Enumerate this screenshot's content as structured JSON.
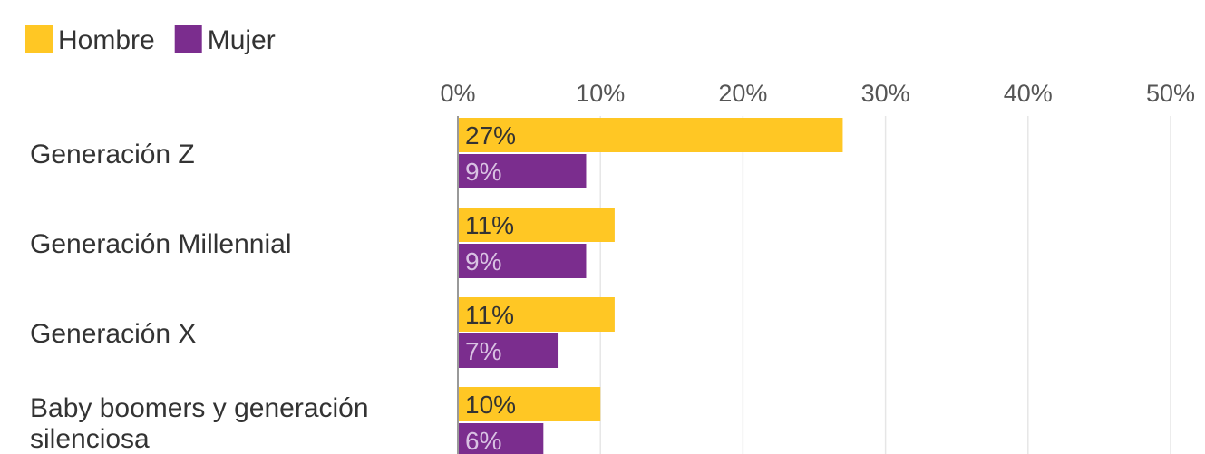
{
  "chart_data": {
    "type": "bar",
    "orientation": "horizontal",
    "title": "",
    "xlabel": "",
    "ylabel": "",
    "xlim": [
      0,
      50
    ],
    "ticks": [
      0,
      10,
      20,
      30,
      40,
      50
    ],
    "tick_labels": [
      "0%",
      "10%",
      "20%",
      "30%",
      "40%",
      "50%"
    ],
    "grid": true,
    "legend_position": "top-left",
    "categories": [
      [
        "Generación Z"
      ],
      [
        "Generación Millennial"
      ],
      [
        "Generación X"
      ],
      [
        "Baby boomers y generación",
        "silenciosa"
      ]
    ],
    "series": [
      {
        "name": "Hombre",
        "color": "#FFC724",
        "label_color": "#333333",
        "values": [
          27,
          11,
          11,
          10
        ],
        "value_labels": [
          "27%",
          "11%",
          "11%",
          "10%"
        ]
      },
      {
        "name": "Mujer",
        "color": "#7B2D8E",
        "label_color": "#D9C2E3",
        "values": [
          9,
          9,
          7,
          6
        ],
        "value_labels": [
          "9%",
          "9%",
          "7%",
          "6%"
        ]
      }
    ]
  }
}
